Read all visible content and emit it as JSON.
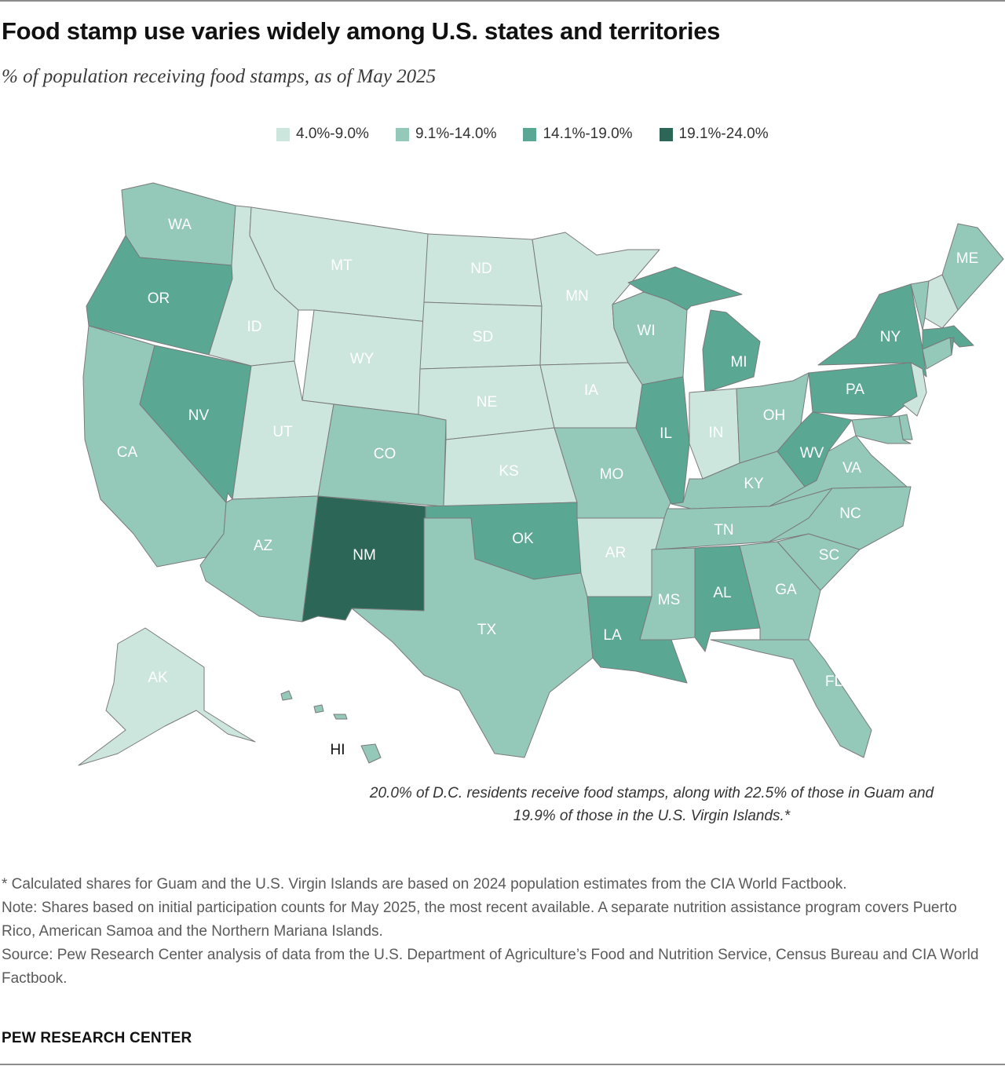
{
  "header": {
    "title": "Food stamp use varies widely among U.S. states and territories",
    "subtitle": "% of population receiving food stamps, as of May 2025"
  },
  "legend": [
    {
      "label": "4.0%-9.0%",
      "color": "#cde6dd"
    },
    {
      "label": "9.1%-14.0%",
      "color": "#94c8b9"
    },
    {
      "label": "14.1%-19.0%",
      "color": "#5aa794"
    },
    {
      "label": "19.1%-24.0%",
      "color": "#2b6656"
    }
  ],
  "map": {
    "type": "choropleth",
    "states": [
      {
        "abbr": "WA",
        "bin": 1
      },
      {
        "abbr": "OR",
        "bin": 2
      },
      {
        "abbr": "CA",
        "bin": 1
      },
      {
        "abbr": "NV",
        "bin": 2
      },
      {
        "abbr": "ID",
        "bin": 0
      },
      {
        "abbr": "MT",
        "bin": 0
      },
      {
        "abbr": "WY",
        "bin": 0
      },
      {
        "abbr": "UT",
        "bin": 0
      },
      {
        "abbr": "AZ",
        "bin": 1
      },
      {
        "abbr": "CO",
        "bin": 1
      },
      {
        "abbr": "NM",
        "bin": 3
      },
      {
        "abbr": "ND",
        "bin": 0
      },
      {
        "abbr": "SD",
        "bin": 0
      },
      {
        "abbr": "NE",
        "bin": 0
      },
      {
        "abbr": "KS",
        "bin": 0
      },
      {
        "abbr": "OK",
        "bin": 2
      },
      {
        "abbr": "TX",
        "bin": 1
      },
      {
        "abbr": "MN",
        "bin": 0
      },
      {
        "abbr": "IA",
        "bin": 0
      },
      {
        "abbr": "MO",
        "bin": 1
      },
      {
        "abbr": "AR",
        "bin": 0
      },
      {
        "abbr": "LA",
        "bin": 2
      },
      {
        "abbr": "WI",
        "bin": 1
      },
      {
        "abbr": "IL",
        "bin": 2
      },
      {
        "abbr": "MI",
        "bin": 2
      },
      {
        "abbr": "IN",
        "bin": 0
      },
      {
        "abbr": "OH",
        "bin": 1
      },
      {
        "abbr": "KY",
        "bin": 1
      },
      {
        "abbr": "TN",
        "bin": 1
      },
      {
        "abbr": "MS",
        "bin": 1
      },
      {
        "abbr": "AL",
        "bin": 2
      },
      {
        "abbr": "GA",
        "bin": 1
      },
      {
        "abbr": "FL",
        "bin": 1
      },
      {
        "abbr": "SC",
        "bin": 1
      },
      {
        "abbr": "NC",
        "bin": 1
      },
      {
        "abbr": "VA",
        "bin": 1
      },
      {
        "abbr": "WV",
        "bin": 2
      },
      {
        "abbr": "PA",
        "bin": 2
      },
      {
        "abbr": "NY",
        "bin": 2
      },
      {
        "abbr": "ME",
        "bin": 1
      },
      {
        "abbr": "AK",
        "bin": 0
      },
      {
        "abbr": "HI",
        "bin": 1
      }
    ],
    "small_states": [
      {
        "abbr": "VT",
        "bin": 1
      },
      {
        "abbr": "NH",
        "bin": 0
      },
      {
        "abbr": "MA",
        "bin": 2
      },
      {
        "abbr": "RI",
        "bin": 2
      },
      {
        "abbr": "CT",
        "bin": 1
      },
      {
        "abbr": "NJ",
        "bin": 0
      },
      {
        "abbr": "DE",
        "bin": 1
      },
      {
        "abbr": "MD",
        "bin": 1
      }
    ]
  },
  "dc_note": "20.0% of D.C. residents receive food stamps, along with 22.5% of those in Guam and 19.9% of those in the U.S. Virgin Islands.*",
  "footnotes": {
    "asterisk": "* Calculated shares for Guam and the U.S. Virgin Islands are based on 2024 population estimates from the CIA World Factbook.",
    "note": "Note: Shares based on initial participation counts for May 2025, the most recent available. A separate nutrition assistance program covers Puerto Rico, American Samoa and the Northern Mariana Islands.",
    "source": "Source: Pew Research Center analysis of data from the U.S. Department of Agriculture’s Food and Nutrition Service, Census Bureau and CIA World Factbook."
  },
  "brand": "PEW RESEARCH CENTER"
}
